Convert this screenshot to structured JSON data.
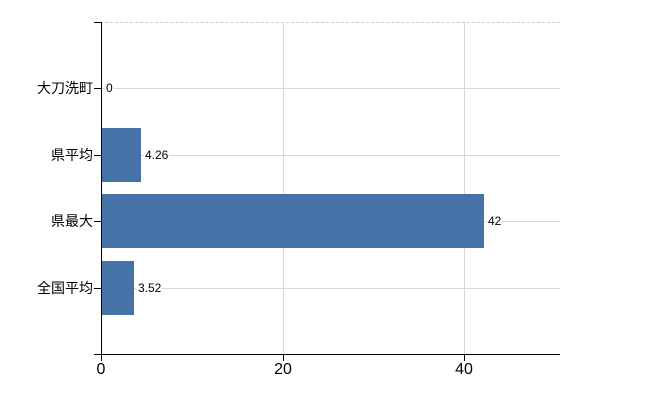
{
  "chart_data": {
    "type": "bar",
    "orientation": "horizontal",
    "title": "",
    "categories": [
      "大刀洗町",
      "県平均",
      "県最大",
      "全国平均"
    ],
    "values": [
      0,
      4.26,
      42,
      3.52
    ],
    "value_labels": [
      "0",
      "4.26",
      "42",
      "3.52"
    ],
    "series": [
      {
        "name": "",
        "values": [
          0,
          4.26,
          42,
          3.52
        ]
      }
    ],
    "x_ticks": [
      0,
      20,
      40
    ],
    "x_tick_labels": [
      "0",
      "20",
      "40"
    ],
    "xlim": [
      0,
      50.4
    ],
    "ylabel": "",
    "xlabel": "",
    "grid": true,
    "legend": false,
    "colors": {
      "bar": "#4572a7",
      "h_gridline": "#d6dad6",
      "v_gridline": "#d6d6d6",
      "top_border": "#cccccc",
      "axis": "#000000",
      "text": "#000000",
      "background": "#ffffff"
    }
  }
}
